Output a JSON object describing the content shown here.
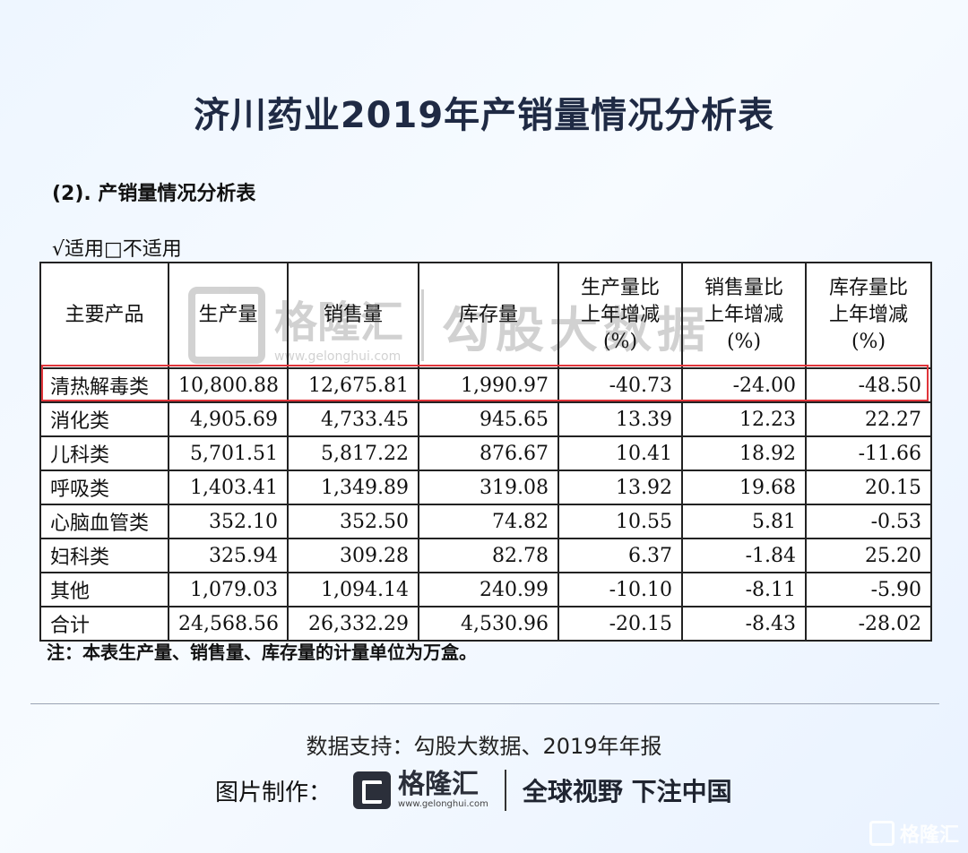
{
  "title": "济川药业2019年产销量情况分析表",
  "section_title": "(2). 产销量情况分析表",
  "applicable": "√适用□不适用",
  "table": {
    "headers": [
      "主要产品",
      "生产量",
      "销售量",
      "库存量",
      "生产量比\n上年增减\n(%)",
      "销售量比\n上年增减\n(%)",
      "库存量比\n上年增减\n(%)"
    ],
    "rows": [
      [
        "清热解毒类",
        "10,800.88",
        "12,675.81",
        "1,990.97",
        "-40.73",
        "-24.00",
        "-48.50"
      ],
      [
        "消化类",
        "4,905.69",
        "4,733.45",
        "945.65",
        "13.39",
        "12.23",
        "22.27"
      ],
      [
        "儿科类",
        "5,701.51",
        "5,817.22",
        "876.67",
        "10.41",
        "18.92",
        "-11.66"
      ],
      [
        "呼吸类",
        "1,403.41",
        "1,349.89",
        "319.08",
        "13.92",
        "19.68",
        "20.15"
      ],
      [
        "心脑血管类",
        "352.10",
        "352.50",
        "74.82",
        "10.55",
        "5.81",
        "-0.53"
      ],
      [
        "妇科类",
        "325.94",
        "309.28",
        "82.78",
        "6.37",
        "-1.84",
        "25.20"
      ],
      [
        "其他",
        "1,079.03",
        "1,094.14",
        "240.99",
        "-10.10",
        "-8.11",
        "-5.90"
      ],
      [
        "合计",
        "24,568.56",
        "26,332.29",
        "4,530.96",
        "-20.15",
        "-8.43",
        "-28.02"
      ]
    ],
    "highlight_color": "#e0353a"
  },
  "note": "注：本表生产量、销售量、库存量的计量单位为万盒。",
  "source": "数据支持：勾股大数据、2019年年报",
  "credit": {
    "label": "图片制作：",
    "logo_name": "格隆汇",
    "logo_domain": "www.gelonghui.com",
    "slogan": "全球视野 下注中国"
  },
  "watermark": {
    "name": "格隆汇",
    "domain": "www.gelonghui.com",
    "slogan": "勾股大数据"
  },
  "corner_logo": "格隆汇"
}
